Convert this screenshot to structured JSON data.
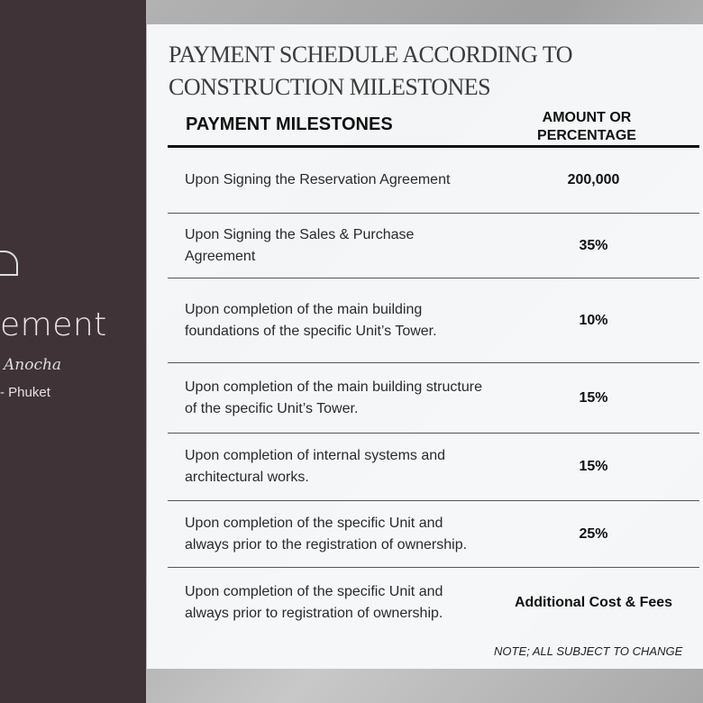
{
  "sidebar": {
    "brand": "ement",
    "script": "Anocha",
    "location": "- Phuket"
  },
  "title": {
    "line1": "PAYMENT SCHEDULE ACCORDING TO CONSTRUCTION",
    "line2": "MILESTONES"
  },
  "table": {
    "headers": [
      "PAYMENT  MILESTONES",
      "AMOUNT OR PERCENTAGE"
    ],
    "rows": [
      {
        "milestone": "Upon Signing the Reservation Agreement",
        "amount": "200,000"
      },
      {
        "milestone": "Upon Signing the Sales & Purchase Agreement",
        "amount": "35%"
      },
      {
        "milestone": "Upon completion of the main building foundations of the specific Unit’s Tower.",
        "amount": "10%"
      },
      {
        "milestone": "Upon completion of the main building structure of the specific Unit’s Tower.",
        "amount": "15%"
      },
      {
        "milestone": "Upon completion of internal systems and architectural works.",
        "amount": "15%"
      },
      {
        "milestone": "Upon completion of the specific Unit and always prior to the registration of ownership.",
        "amount": "25%"
      },
      {
        "milestone": "Upon completion of the specific Unit and always prior to registration of ownership.",
        "amount": "Additional Cost & Fees"
      }
    ]
  },
  "note": "NOTE; ALL SUBJECT TO CHANGE"
}
